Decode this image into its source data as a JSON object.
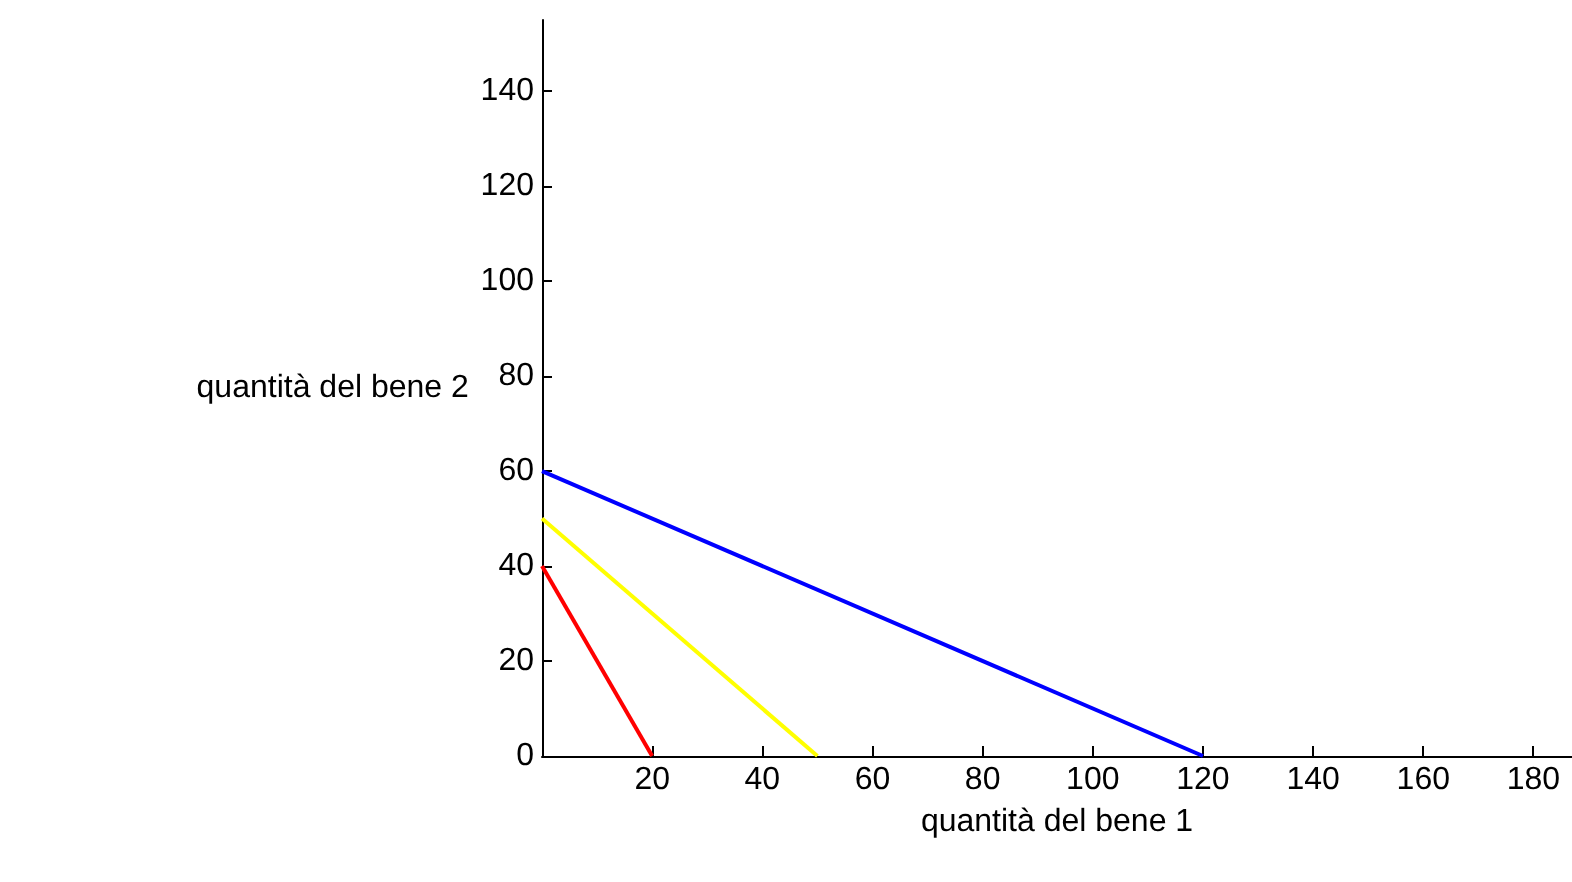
{
  "chart_data": {
    "type": "line",
    "xlabel": "quantità del bene 1",
    "ylabel": "quantità del bene 2",
    "xlim": [
      0,
      187
    ],
    "ylim": [
      0,
      155
    ],
    "xticks": [
      20,
      40,
      60,
      80,
      100,
      120,
      140,
      160,
      180
    ],
    "yticks": [
      0,
      20,
      40,
      60,
      80,
      100,
      120,
      140
    ],
    "grid": false,
    "marker": "none",
    "line_style": "solid",
    "series": [
      {
        "color": "#ff0000",
        "x": [
          0,
          20
        ],
        "values": [
          40,
          0
        ]
      },
      {
        "color": "#ffff00",
        "x": [
          0,
          50
        ],
        "values": [
          50,
          0
        ]
      },
      {
        "color": "#0000ff",
        "x": [
          0,
          120
        ],
        "values": [
          60,
          0
        ]
      }
    ]
  }
}
